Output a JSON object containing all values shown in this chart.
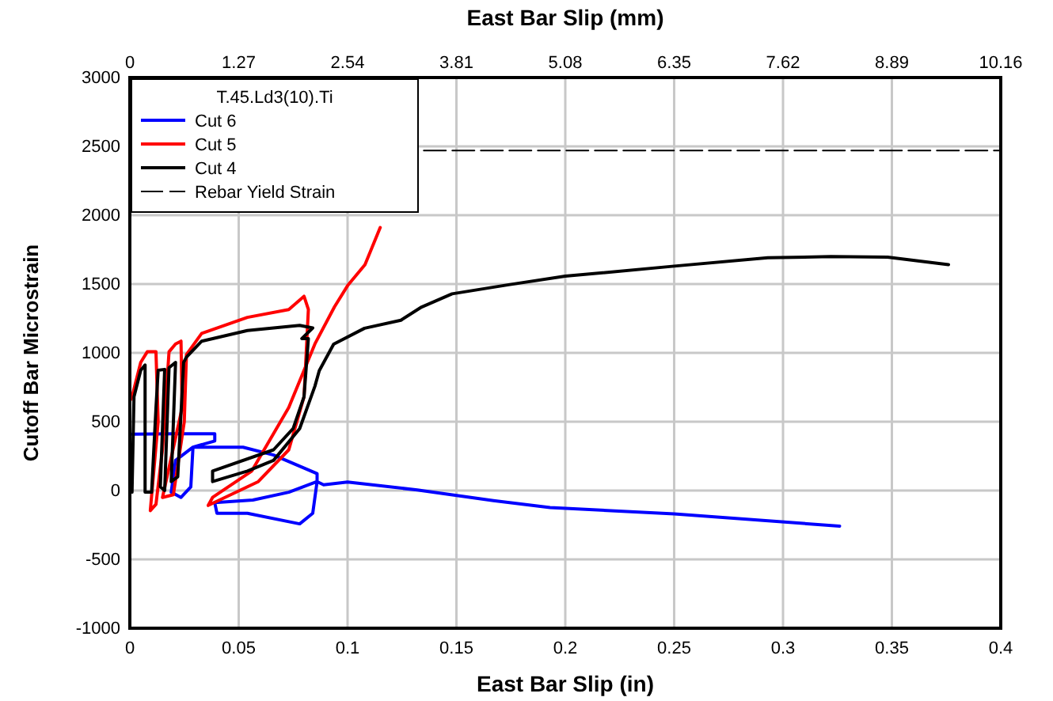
{
  "chart_data": {
    "type": "line",
    "xlabel": "East Bar Slip (in)",
    "ylabel": "Cutoff Bar Microstrain",
    "x2label": "East Bar Slip (mm)",
    "legend_title": "T.45.Ld3(10).Ti",
    "legend": "top left",
    "grid": true,
    "xlim": [
      0,
      0.4
    ],
    "xticks": [
      0,
      0.05,
      0.1,
      0.15,
      0.2,
      0.25,
      0.3,
      0.35,
      0.4
    ],
    "x2lim": [
      0,
      10.16
    ],
    "x2ticks": [
      0,
      1.27,
      2.54,
      3.81,
      5.08,
      6.35,
      7.62,
      8.89,
      10.16
    ],
    "ylim": [
      -1000,
      3000
    ],
    "yticks": [
      -1000,
      -500,
      0,
      500,
      1000,
      1500,
      2000,
      2500,
      3000
    ],
    "series": [
      {
        "name": "Cut 6",
        "color": "#0000ff",
        "line_style": "solid",
        "x": [
          0.001,
          0.02,
          0.039,
          0.039,
          0.029,
          0.028,
          0.0235,
          0.019,
          0.021,
          0.029,
          0.052,
          0.066,
          0.086,
          0.086,
          0.073,
          0.0565,
          0.039,
          0.04,
          0.054,
          0.078,
          0.084,
          0.086,
          0.089,
          0.1,
          0.132,
          0.167,
          0.193,
          0.25,
          0.326
        ],
        "values": [
          410,
          412,
          412,
          360,
          315,
          27,
          -50,
          -12,
          219,
          315,
          315,
          258,
          123,
          65,
          -12,
          -69,
          -88,
          -165,
          -165,
          -242,
          -165,
          65,
          42,
          62,
          4,
          -73,
          -123,
          -170,
          -258
        ]
      },
      {
        "name": "Cut 5",
        "color": "#ff0000",
        "line_style": "solid",
        "x": [
          0,
          0.001,
          0.005,
          0.008,
          0.012,
          0.013,
          0.0094,
          0.012,
          0.015,
          0.018,
          0.021,
          0.0235,
          0.024,
          0.015,
          0.02,
          0.025,
          0.026,
          0.033,
          0.054,
          0.073,
          0.08,
          0.082,
          0.08,
          0.073,
          0.059,
          0.036,
          0.038,
          0.056,
          0.073,
          0.085,
          0.094,
          0.1,
          0.108,
          0.115
        ],
        "values": [
          650,
          681,
          931,
          1008,
          1008,
          500,
          -146,
          -100,
          300,
          1008,
          1065,
          1085,
          600,
          -50,
          -30,
          500,
          988,
          1142,
          1258,
          1315,
          1411,
          1315,
          681,
          296,
          65,
          -108,
          -50,
          142,
          604,
          1065,
          1335,
          1488,
          1641,
          1911
        ]
      },
      {
        "name": "Cut 4",
        "color": "#000000",
        "line_style": "solid",
        "x": [
          0.001,
          0.0019,
          0.005,
          0.007,
          0.007,
          0.01,
          0.012,
          0.013,
          0.016,
          0.014,
          0.016,
          0.018,
          0.021,
          0.019,
          0.022,
          0.0247,
          0.026,
          0.033,
          0.054,
          0.078,
          0.084,
          0.079,
          0.082,
          0.08,
          0.075,
          0.066,
          0.038,
          0.038,
          0.054,
          0.066,
          0.078,
          0.085,
          0.087,
          0.0936,
          0.1078,
          0.1245,
          0.134,
          0.148,
          0.174,
          0.2,
          0.25,
          0.293,
          0.322,
          0.348,
          0.376
        ],
        "values": [
          -12,
          681,
          873,
          912,
          -12,
          -12,
          600,
          873,
          880,
          27,
          0,
          892,
          931,
          65,
          100,
          931,
          969,
          1085,
          1162,
          1200,
          1181,
          1104,
          1104,
          681,
          450,
          296,
          142,
          65,
          142,
          219,
          450,
          758,
          871,
          1063,
          1179,
          1237,
          1333,
          1429,
          1495,
          1557,
          1630,
          1691,
          1699,
          1695,
          1641
        ]
      },
      {
        "name": "Rebar Yield Strain",
        "color": "#000000",
        "line_style": "dashed",
        "x": [
          0.135,
          0.4
        ],
        "values": [
          2470,
          2470
        ]
      }
    ]
  }
}
